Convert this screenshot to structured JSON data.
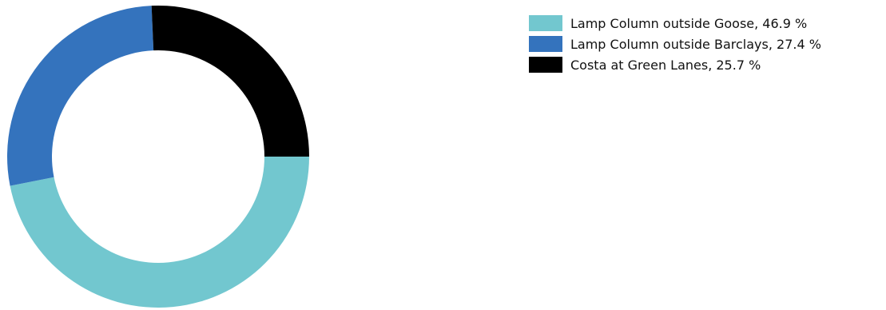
{
  "chart_data": {
    "type": "pie",
    "variant": "donut",
    "unit": "%",
    "legend_position": "top-right",
    "series": [
      {
        "name": "Lamp Column outside Goose",
        "value": 46.9,
        "color": "#72c7cf",
        "legend_label": "Lamp Column outside Goose, 46.9 %"
      },
      {
        "name": "Lamp Column outside Barclays",
        "value": 27.4,
        "color": "#3473bd",
        "legend_label": "Lamp Column outside Barclays, 27.4 %"
      },
      {
        "name": "Costa at Green Lanes",
        "value": 25.7,
        "color": "#000000",
        "legend_label": "Costa at Green Lanes, 25.7 %"
      }
    ]
  }
}
